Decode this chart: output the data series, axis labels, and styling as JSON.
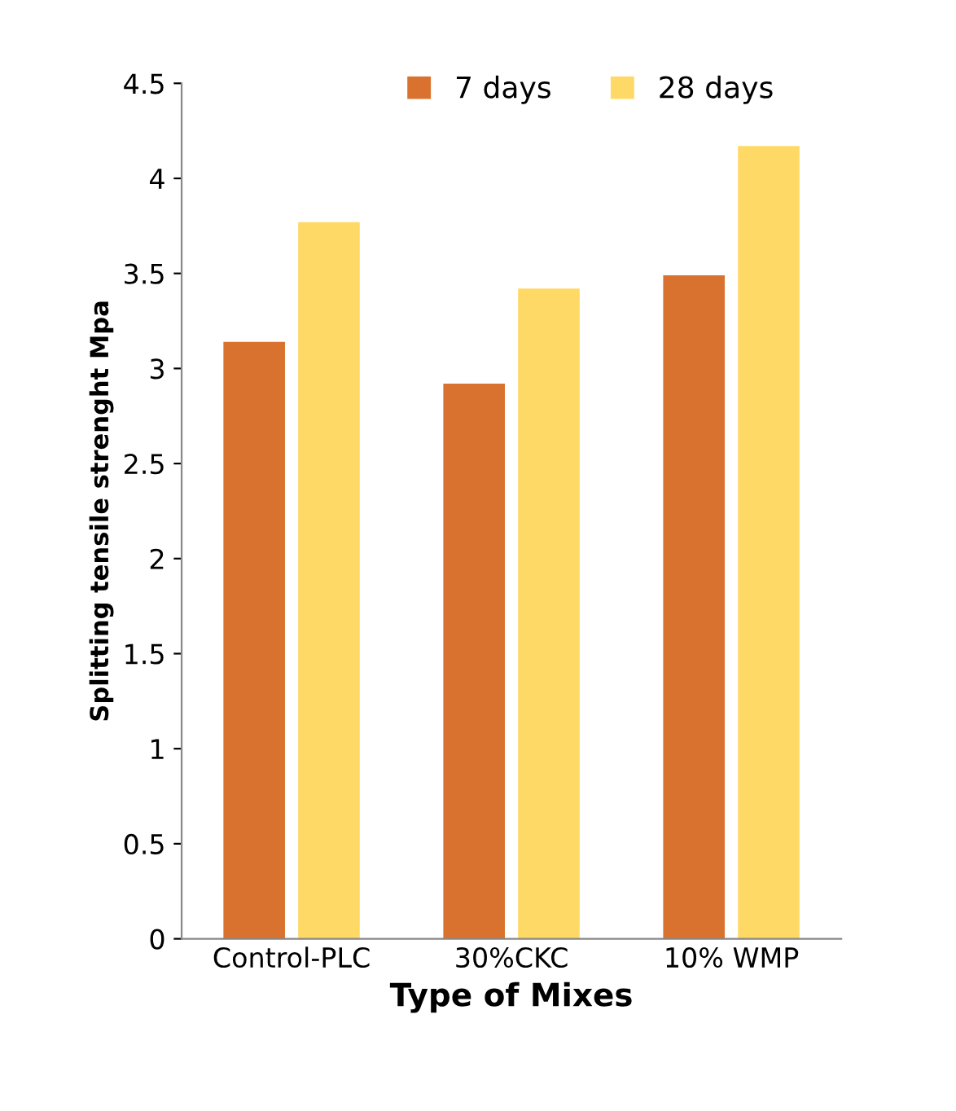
{
  "chart_data": {
    "type": "bar",
    "xlabel": "Type of Mixes",
    "ylabel": "Splitting tensile strenght Mpa",
    "categories": [
      "Control-PLC",
      "30%CKC",
      "10% WMP"
    ],
    "series": [
      {
        "name": "7 days",
        "color": "#d9722e",
        "values": [
          3.14,
          2.92,
          3.49
        ]
      },
      {
        "name": "28 days",
        "color": "#ffd966",
        "values": [
          3.77,
          3.42,
          4.17
        ]
      }
    ],
    "ylim": [
      0,
      4.5
    ],
    "yticks": [
      0,
      0.5,
      1,
      1.5,
      2,
      2.5,
      3,
      3.5,
      4,
      4.5
    ],
    "grid": false,
    "legend": "top"
  }
}
